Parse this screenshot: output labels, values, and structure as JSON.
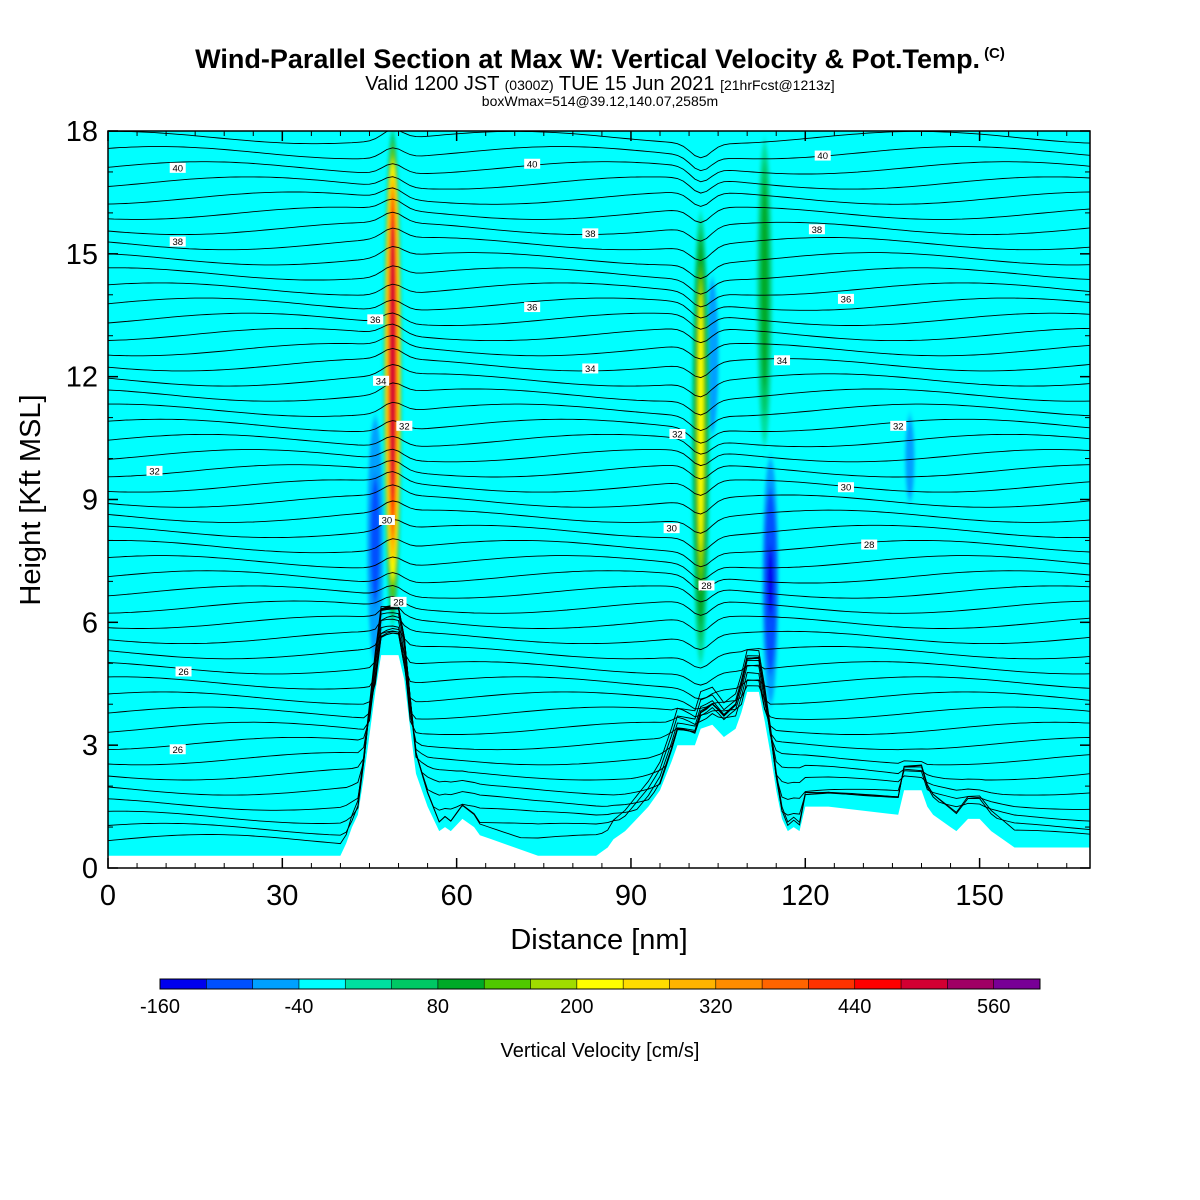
{
  "title": {
    "main": "Wind-Parallel Section at Max W: Vertical Velocity & Pot.Temp.",
    "copyright": "(C)",
    "valid_prefix": "Valid 1200 JST",
    "valid_utc": "(0300Z)",
    "valid_suffix": "TUE 15 Jun 2021",
    "forecast": "[21hrFcst@1213z]",
    "box": "boxWmax=514@39.12,140.07,2585m"
  },
  "chart_data": {
    "type": "heatmap",
    "xlabel": "Distance [nm]",
    "ylabel": "Height [Kft MSL]",
    "xlim": [
      0,
      169
    ],
    "ylim": [
      0,
      18
    ],
    "xticks": [
      0,
      30,
      60,
      90,
      120,
      150
    ],
    "yticks": [
      0,
      3,
      6,
      9,
      12,
      15,
      18
    ],
    "colorbar": {
      "label": "Vertical Velocity [cm/s]",
      "min": -160,
      "max": 600,
      "step": 40,
      "tick_labels": [
        "-160",
        "-40",
        "80",
        "200",
        "320",
        "440",
        "560"
      ],
      "colors": [
        "#0000ee",
        "#0050ff",
        "#00a0ff",
        "#00ffff",
        "#00e0a0",
        "#00c864",
        "#00aa28",
        "#50c800",
        "#a0dc00",
        "#ffff00",
        "#ffdc00",
        "#ffb400",
        "#ff8c00",
        "#ff6400",
        "#ff3200",
        "#ff0000",
        "#d20032",
        "#a00064",
        "#780096"
      ]
    },
    "background_velocity_cm_s": -20,
    "updraft_bands": [
      {
        "x_nm": 49,
        "y_kft": [
          6,
          18
        ],
        "peak_cm_s": 514
      },
      {
        "x_nm": 102,
        "y_kft": [
          5,
          16
        ],
        "peak_cm_s": 220
      },
      {
        "x_nm": 113,
        "y_kft": [
          10,
          18
        ],
        "peak_cm_s": 100
      }
    ],
    "downdraft_bands": [
      {
        "x_nm": 46,
        "y_kft": [
          5,
          11
        ],
        "min_cm_s": -120
      },
      {
        "x_nm": 114,
        "y_kft": [
          4,
          10
        ],
        "min_cm_s": -150
      },
      {
        "x_nm": 104,
        "y_kft": [
          10,
          15
        ],
        "min_cm_s": -80
      },
      {
        "x_nm": 138,
        "y_kft": [
          8,
          12
        ],
        "min_cm_s": -60
      }
    ],
    "terrain_kft": [
      [
        0,
        0.3
      ],
      [
        40,
        0.3
      ],
      [
        41,
        0.6
      ],
      [
        42,
        1.0
      ],
      [
        43,
        1.3
      ],
      [
        44,
        2.2
      ],
      [
        46,
        4.3
      ],
      [
        47,
        5.2
      ],
      [
        50,
        5.2
      ],
      [
        51,
        4.6
      ],
      [
        52,
        3.4
      ],
      [
        53,
        2.3
      ],
      [
        55,
        1.5
      ],
      [
        57,
        0.9
      ],
      [
        58,
        1.0
      ],
      [
        59,
        0.9
      ],
      [
        61,
        1.2
      ],
      [
        63,
        1.0
      ],
      [
        64,
        0.8
      ],
      [
        66,
        0.7
      ],
      [
        70,
        0.5
      ],
      [
        74,
        0.3
      ],
      [
        84,
        0.3
      ],
      [
        86,
        0.5
      ],
      [
        87,
        0.7
      ],
      [
        89,
        0.9
      ],
      [
        91,
        1.2
      ],
      [
        93,
        1.5
      ],
      [
        95,
        1.9
      ],
      [
        97,
        2.6
      ],
      [
        98,
        3.0
      ],
      [
        101,
        3.0
      ],
      [
        102,
        3.4
      ],
      [
        104,
        3.5
      ],
      [
        106,
        3.2
      ],
      [
        108,
        3.4
      ],
      [
        109,
        3.8
      ],
      [
        110,
        4.3
      ],
      [
        112,
        4.3
      ],
      [
        113,
        3.6
      ],
      [
        114,
        2.8
      ],
      [
        115,
        1.9
      ],
      [
        116,
        1.2
      ],
      [
        117,
        0.9
      ],
      [
        118,
        1.0
      ],
      [
        119,
        0.9
      ],
      [
        120,
        1.5
      ],
      [
        124,
        1.5
      ],
      [
        136,
        1.3
      ],
      [
        137,
        1.9
      ],
      [
        140,
        1.9
      ],
      [
        141,
        1.5
      ],
      [
        142,
        1.3
      ],
      [
        145,
        1.0
      ],
      [
        146,
        0.9
      ],
      [
        148,
        1.2
      ],
      [
        150,
        1.2
      ],
      [
        152,
        0.9
      ],
      [
        154,
        0.7
      ],
      [
        156,
        0.5
      ],
      [
        169,
        0.5
      ]
    ],
    "theta_contour_labels": [
      {
        "text": "40",
        "x": 12,
        "y": 17.1
      },
      {
        "text": "40",
        "x": 73,
        "y": 17.2
      },
      {
        "text": "40",
        "x": 123,
        "y": 17.4
      },
      {
        "text": "38",
        "x": 12,
        "y": 15.3
      },
      {
        "text": "38",
        "x": 83,
        "y": 15.5
      },
      {
        "text": "38",
        "x": 122,
        "y": 15.6
      },
      {
        "text": "36",
        "x": 46,
        "y": 13.4
      },
      {
        "text": "36",
        "x": 73,
        "y": 13.7
      },
      {
        "text": "36",
        "x": 127,
        "y": 13.9
      },
      {
        "text": "34",
        "x": 47,
        "y": 11.9
      },
      {
        "text": "34",
        "x": 83,
        "y": 12.2
      },
      {
        "text": "34",
        "x": 116,
        "y": 12.4
      },
      {
        "text": "32",
        "x": 8,
        "y": 9.7
      },
      {
        "text": "32",
        "x": 51,
        "y": 10.8
      },
      {
        "text": "32",
        "x": 98,
        "y": 10.6
      },
      {
        "text": "32",
        "x": 136,
        "y": 10.8
      },
      {
        "text": "30",
        "x": 48,
        "y": 8.5
      },
      {
        "text": "30",
        "x": 97,
        "y": 8.3
      },
      {
        "text": "30",
        "x": 127,
        "y": 9.3
      },
      {
        "text": "28",
        "x": 50,
        "y": 6.5
      },
      {
        "text": "28",
        "x": 103,
        "y": 6.9
      },
      {
        "text": "28",
        "x": 131,
        "y": 7.9
      },
      {
        "text": "26",
        "x": 13,
        "y": 4.8
      },
      {
        "text": "26",
        "x": 12,
        "y": 2.9
      }
    ]
  }
}
